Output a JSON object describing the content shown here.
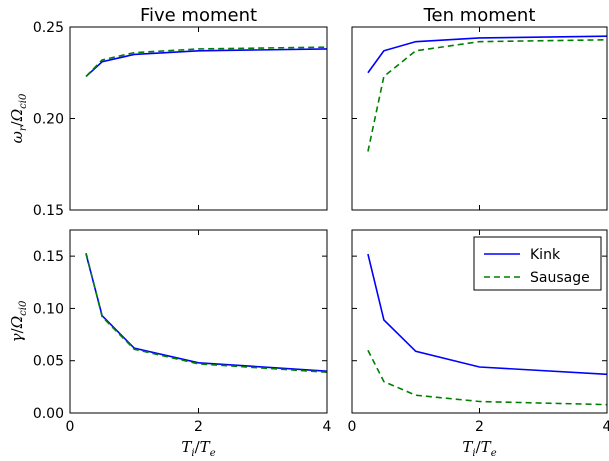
{
  "chart_data": [
    {
      "type": "line",
      "title": "Five moment",
      "xlabel": "",
      "ylabel": "ω_r/Ω_ci0",
      "xlim": [
        0,
        4
      ],
      "ylim": [
        0.15,
        0.25
      ],
      "xticks": [],
      "yticks": [
        "0.15",
        "0.20",
        "0.25"
      ],
      "legend": "",
      "series": [
        {
          "name": "Kink",
          "color": "#0000ff",
          "dash": "solid",
          "x": [
            0.25,
            0.5,
            1,
            2,
            4
          ],
          "y": [
            0.223,
            0.231,
            0.235,
            0.237,
            0.238
          ]
        },
        {
          "name": "Sausage",
          "color": "#008000",
          "dash": "dashed",
          "x": [
            0.25,
            0.5,
            1,
            2,
            4
          ],
          "y": [
            0.223,
            0.232,
            0.236,
            0.238,
            0.239
          ]
        }
      ]
    },
    {
      "type": "line",
      "title": "Ten moment",
      "xlabel": "",
      "ylabel": "",
      "xlim": [
        0,
        4
      ],
      "ylim": [
        0.15,
        0.25
      ],
      "xticks": [],
      "yticks": [],
      "legend": "",
      "series": [
        {
          "name": "Kink",
          "color": "#0000ff",
          "dash": "solid",
          "x": [
            0.25,
            0.5,
            1,
            2,
            4
          ],
          "y": [
            0.225,
            0.237,
            0.242,
            0.244,
            0.245
          ]
        },
        {
          "name": "Sausage",
          "color": "#008000",
          "dash": "dashed",
          "x": [
            0.25,
            0.5,
            1,
            2,
            4
          ],
          "y": [
            0.182,
            0.223,
            0.237,
            0.242,
            0.243
          ]
        }
      ]
    },
    {
      "type": "line",
      "title": "",
      "xlabel": "T_i/T_e",
      "ylabel": "γ/Ω_ci0",
      "xlim": [
        0,
        4
      ],
      "ylim": [
        0.0,
        0.175
      ],
      "xticks": [
        "0",
        "2",
        "4"
      ],
      "yticks": [
        "0.00",
        "0.05",
        "0.10",
        "0.15"
      ],
      "legend": "",
      "series": [
        {
          "name": "Kink",
          "color": "#0000ff",
          "dash": "solid",
          "x": [
            0.25,
            0.5,
            1,
            2,
            4
          ],
          "y": [
            0.152,
            0.093,
            0.062,
            0.048,
            0.04
          ]
        },
        {
          "name": "Sausage",
          "color": "#008000",
          "dash": "dashed",
          "x": [
            0.25,
            0.5,
            1,
            2,
            4
          ],
          "y": [
            0.153,
            0.092,
            0.061,
            0.047,
            0.039
          ]
        }
      ]
    },
    {
      "type": "line",
      "title": "",
      "xlabel": "T_i/T_e",
      "ylabel": "",
      "xlim": [
        0,
        4
      ],
      "ylim": [
        0.0,
        0.175
      ],
      "xticks": [
        "0",
        "2",
        "4"
      ],
      "yticks": [],
      "legend": "top-right",
      "series": [
        {
          "name": "Kink",
          "color": "#0000ff",
          "dash": "solid",
          "x": [
            0.25,
            0.5,
            1,
            2,
            4
          ],
          "y": [
            0.152,
            0.089,
            0.059,
            0.044,
            0.037
          ]
        },
        {
          "name": "Sausage",
          "color": "#008000",
          "dash": "dashed",
          "x": [
            0.25,
            0.5,
            1,
            2,
            4
          ],
          "y": [
            0.06,
            0.03,
            0.017,
            0.011,
            0.008
          ]
        }
      ]
    }
  ]
}
